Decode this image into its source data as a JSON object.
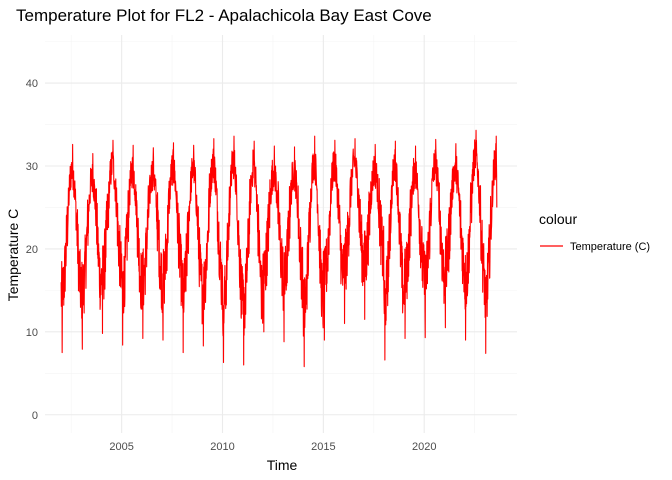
{
  "chart_data": {
    "type": "line",
    "title": "Temperature Plot for FL2 - Apalachicola Bay East Cove",
    "xlabel": "Time",
    "ylabel": "Temperature C",
    "xlim": [
      2001.2,
      2024.6
    ],
    "ylim": [
      -2.2,
      45.8
    ],
    "x_ticks": [
      2005,
      2010,
      2015,
      2020
    ],
    "x_tick_labels": [
      "2005",
      "2010",
      "2015",
      "2020"
    ],
    "y_ticks": [
      0,
      10,
      20,
      30,
      40
    ],
    "y_tick_labels": [
      "0",
      "10",
      "20",
      "30",
      "40"
    ],
    "grid": true,
    "legend": {
      "title": "colour",
      "position": "right"
    },
    "series": [
      {
        "name": "Temperature (C)",
        "color": "#ff0000",
        "x_start": 2002.0,
        "x_end": 2023.6,
        "annual_summer_max": [
          32.6,
          31.5,
          33.1,
          32.5,
          32.2,
          32.8,
          32.5,
          33.3,
          33.6,
          33.0,
          32.4,
          32.3,
          33.6,
          33.1,
          33.3,
          32.6,
          33.0,
          32.4,
          33.2,
          32.7,
          34.3,
          33.6
        ],
        "annual_winter_min": [
          7.5,
          7.9,
          9.8,
          8.4,
          9.2,
          9.0,
          7.5,
          8.3,
          6.3,
          6.0,
          10.0,
          8.8,
          5.8,
          9.0,
          11.0,
          11.5,
          6.6,
          9.2,
          9.3,
          10.5,
          9.0,
          7.4
        ],
        "last_value": 25.0
      }
    ]
  }
}
